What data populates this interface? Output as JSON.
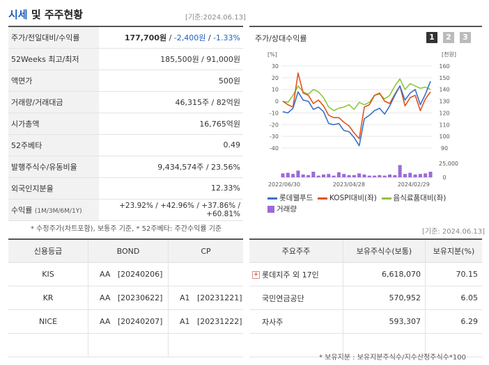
{
  "header": {
    "title_a": "시세",
    "title_b": " 및 주주현황",
    "base_date": "[기준:2024.06.13]"
  },
  "info_rows": [
    {
      "key": "주가/전일대비/수익률",
      "price": "177,700원",
      "sep1": " / ",
      "change": "-2,400원",
      "sep2": " / ",
      "rate": "-1.33%"
    },
    {
      "key": "52Weeks 최고/최저",
      "value": "185,500원 / 91,000원"
    },
    {
      "key": "액면가",
      "value": "500원"
    },
    {
      "key": "거래량/거래대금",
      "value": "46,315주 / 82억원"
    },
    {
      "key": "시가총액",
      "value": "16,765억원"
    },
    {
      "key": "52주베타",
      "value": "0.49"
    },
    {
      "key": "발행주식수/유동비율",
      "value": "9,434,574주 / 23.56%"
    },
    {
      "key": "외국인지분율",
      "value": "12.33%"
    },
    {
      "key": "수익률",
      "key_small": "(1M/3M/6M/1Y)",
      "r1": "+23.92%",
      "r2": "+42.96%",
      "r3": "+37.86%",
      "r4": "+60.81%",
      "sep": "/ "
    }
  ],
  "info_note": "* 수정주가(차트포함), 보통주 기준, * 52주베타: 주간수익률 기준",
  "chart": {
    "title": "주가/상대수익률",
    "pages": [
      "1",
      "2",
      "3"
    ],
    "left_unit": "[%]",
    "right_unit": "[천원]",
    "left_ticks": [
      "30",
      "20",
      "10",
      "0",
      "-10",
      "-20",
      "-30",
      "-40"
    ],
    "right_ticks": [
      "160",
      "150",
      "140",
      "130",
      "120",
      "110",
      "100",
      "90"
    ],
    "volume_ticks": [
      "25,000",
      "0"
    ],
    "x_labels": [
      "2022/06/30",
      "2023/04/28",
      "2024/02/29"
    ],
    "legend": [
      "롯데웰푸드",
      "KOSPI대비(좌)",
      "음식료품대비(좌)",
      "거래량"
    ],
    "colors": {
      "stock": "#3b6fc9",
      "kospi": "#e0531f",
      "food": "#8cc63e",
      "volume": "#9b6bd6"
    }
  },
  "chart_data": {
    "type": "line",
    "title": "주가/상대수익률",
    "y_left_range": [
      -40,
      30
    ],
    "y_right_range": [
      90,
      160
    ],
    "volume_range": [
      0,
      25000
    ],
    "x_labels": [
      "2022/06/30",
      "2023/04/28",
      "2024/02/29"
    ],
    "series": [
      {
        "name": "롯데웰푸드",
        "axis": "right",
        "values": [
          121,
          120,
          124,
          138,
          131,
          130,
          123,
          125,
          121,
          111,
          110,
          111,
          105,
          104,
          99,
          92,
          115,
          118,
          122,
          124,
          119,
          126,
          135,
          143,
          131,
          137,
          140,
          127,
          136,
          147
        ]
      },
      {
        "name": "KOSPI대비(좌)",
        "axis": "left",
        "values": [
          0,
          -3,
          -5,
          24,
          7,
          5,
          -2,
          1,
          -4,
          -12,
          -14,
          -14,
          -18,
          -21,
          -27,
          -32,
          -5,
          -3,
          5,
          7,
          0,
          -2,
          6,
          13,
          -4,
          3,
          5,
          -8,
          2,
          8
        ]
      },
      {
        "name": "음식료품대비(좌)",
        "axis": "left",
        "values": [
          0,
          -1,
          5,
          13,
          8,
          6,
          10,
          8,
          3,
          -5,
          -8,
          -6,
          -5,
          -3,
          -7,
          -1,
          -3,
          -1,
          5,
          6,
          2,
          5,
          13,
          19,
          10,
          15,
          13,
          11,
          12,
          10
        ]
      },
      {
        "name": "거래량",
        "axis": "volume",
        "values": [
          7000,
          8000,
          6000,
          12000,
          5000,
          4000,
          10000,
          3000,
          5000,
          6000,
          3000,
          9000,
          6000,
          4000,
          4000,
          7000,
          5000,
          3000,
          3000,
          4000,
          3000,
          5000,
          4000,
          22000,
          6000,
          8000,
          5000,
          6000,
          7000,
          10000
        ]
      }
    ]
  },
  "credit": {
    "headers": [
      "신용등급",
      "BOND",
      "CP"
    ],
    "rows": [
      {
        "agency": "KIS",
        "bond": "AA   [20240206]",
        "cp": ""
      },
      {
        "agency": "KR",
        "bond": "AA   [20230622]",
        "cp": "A1   [20231221]"
      },
      {
        "agency": "NICE",
        "bond": "AA   [20240207]",
        "cp": "A1   [20231222]"
      }
    ]
  },
  "holders": {
    "base_date": "[기준: 2024.06.13]",
    "headers": [
      "주요주주",
      "보유주식수(보통)",
      "보유지분(%)"
    ],
    "rows": [
      {
        "name": "롯데지주 외 17인",
        "shares": "6,618,070",
        "pct": "70.15"
      },
      {
        "name": "국민연금공단",
        "shares": "570,952",
        "pct": "6.05"
      },
      {
        "name": "자사주",
        "shares": "593,307",
        "pct": "6.29"
      }
    ],
    "note": "* 보유지분 : 보유지분주식수/지수산정주식수*100"
  }
}
